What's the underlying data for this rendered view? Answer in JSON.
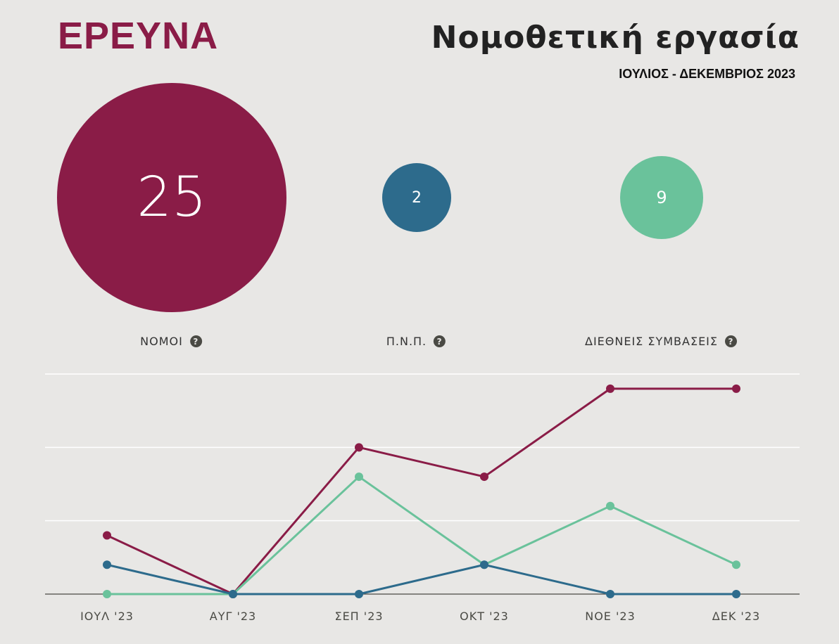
{
  "header": {
    "brand": "ΕΡΕΥΝΑ",
    "title": "Νομοθετική εργασία",
    "period": "ΙΟΥΛΙΟΣ - ΔΕΚΕΜΒΡΙΟΣ 2023"
  },
  "metrics": [
    {
      "key": "laws",
      "value": "25",
      "label": "ΝΟΜΟΙ",
      "help": "?"
    },
    {
      "key": "pnp",
      "value": "2",
      "label": "Π.Ν.Π.",
      "help": "?"
    },
    {
      "key": "conventions",
      "value": "9",
      "label": "ΔΙΕΘΝΕΙΣ ΣΥΜΒΑΣΕΙΣ",
      "help": "?"
    }
  ],
  "colors": {
    "laws": "#8a1c47",
    "pnp": "#2d6b8c",
    "conventions": "#6ac29b"
  },
  "chart_data": {
    "type": "line",
    "categories": [
      "ΙΟΥΛ '23",
      "ΑΥΓ '23",
      "ΣΕΠ '23",
      "ΟΚΤ '23",
      "ΝΟΕ '23",
      "ΔΕΚ '23"
    ],
    "ylim": [
      0,
      7.5
    ],
    "grid": true,
    "series": [
      {
        "name": "ΝΟΜΟΙ",
        "color": "#8a1c47",
        "values": [
          2,
          0,
          5,
          4,
          7,
          7
        ]
      },
      {
        "name": "ΔΙΕΘΝΕΙΣ ΣΥΜΒΑΣΕΙΣ",
        "color": "#6ac29b",
        "values": [
          0,
          0,
          4,
          1,
          3,
          1
        ]
      },
      {
        "name": "Π.Ν.Π.",
        "color": "#2d6b8c",
        "values": [
          1,
          0,
          0,
          1,
          0,
          0
        ]
      }
    ]
  }
}
